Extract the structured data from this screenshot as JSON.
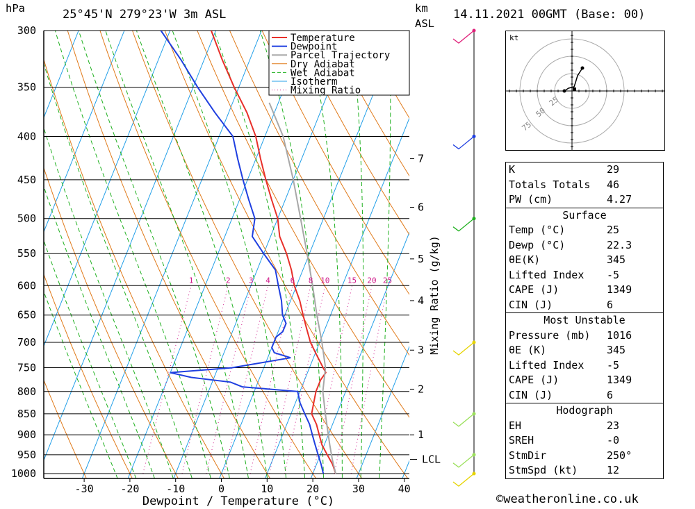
{
  "header": {
    "pressure_unit": "hPa",
    "location": "25°45'N  279°23'W  3m  ASL",
    "height_unit": "km",
    "height_unit_sub": "ASL",
    "datetime": "14.11.2021  00GMT  (Base: 00)"
  },
  "footer": {
    "copyright_symbol": "©",
    "site": "weatheronline.co.uk"
  },
  "colors": {
    "temperature": "#e8302a",
    "dewpoint": "#1f3fe0",
    "parcel": "#a8a8a8",
    "dry_adiabat": "#e07a1a",
    "wet_adiabat": "#1fb01f",
    "isotherm": "#24a0e8",
    "mixing_ratio": "#d01a8a"
  },
  "legend": [
    "Temperature",
    "Dewpoint",
    "Parcel Trajectory",
    "Dry Adiabat",
    "Wet Adiabat",
    "Isotherm",
    "Mixing Ratio"
  ],
  "chart_data": {
    "type": "line",
    "title": "",
    "xlabel": "Dewpoint / Temperature (°C)",
    "ylabel": "hPa",
    "y_scale": "log",
    "xlim": [
      -40,
      40
    ],
    "ylim": [
      1000,
      300
    ],
    "x_ticks": [
      -30,
      -20,
      -10,
      0,
      10,
      20,
      30,
      40
    ],
    "y_ticks": [
      300,
      350,
      400,
      450,
      500,
      550,
      600,
      650,
      700,
      750,
      800,
      850,
      900,
      950,
      1000
    ],
    "right_axis_label": "Mixing Ratio (g/kg)",
    "km_ticks": [
      {
        "km": "1",
        "p": 900
      },
      {
        "km": "2",
        "p": 795
      },
      {
        "km": "3",
        "p": 715
      },
      {
        "km": "4",
        "p": 625
      },
      {
        "km": "5",
        "p": 558
      },
      {
        "km": "6",
        "p": 485
      },
      {
        "km": "7",
        "p": 425
      }
    ],
    "lcl": {
      "label": "LCL",
      "p": 962
    },
    "mixing_ratio_labels": [
      "1",
      "2",
      "3",
      "4",
      "6",
      "8",
      "10",
      "15",
      "20",
      "25"
    ],
    "series": [
      {
        "name": "Temperature",
        "points": [
          [
            1000,
            25
          ],
          [
            975,
            23.5
          ],
          [
            950,
            21.5
          ],
          [
            925,
            19.5
          ],
          [
            900,
            18
          ],
          [
            875,
            16.5
          ],
          [
            850,
            14.5
          ],
          [
            825,
            14
          ],
          [
            800,
            13.5
          ],
          [
            775,
            13.5
          ],
          [
            760,
            14
          ],
          [
            750,
            13
          ],
          [
            725,
            10.5
          ],
          [
            700,
            8
          ],
          [
            675,
            6
          ],
          [
            650,
            4
          ],
          [
            625,
            2
          ],
          [
            600,
            -0.5
          ],
          [
            575,
            -2.5
          ],
          [
            550,
            -5
          ],
          [
            525,
            -8
          ],
          [
            500,
            -10
          ],
          [
            475,
            -13
          ],
          [
            450,
            -16
          ],
          [
            425,
            -19
          ],
          [
            400,
            -22
          ],
          [
            375,
            -26
          ],
          [
            350,
            -31
          ],
          [
            325,
            -36
          ],
          [
            300,
            -41
          ]
        ]
      },
      {
        "name": "Dewpoint",
        "points": [
          [
            1000,
            22.3
          ],
          [
            975,
            21
          ],
          [
            950,
            19.5
          ],
          [
            925,
            18
          ],
          [
            900,
            16.5
          ],
          [
            875,
            15
          ],
          [
            850,
            13
          ],
          [
            825,
            11
          ],
          [
            800,
            9.5
          ],
          [
            790,
            -3
          ],
          [
            780,
            -6
          ],
          [
            770,
            -15
          ],
          [
            760,
            -20
          ],
          [
            750,
            -7
          ],
          [
            730,
            5
          ],
          [
            720,
            1
          ],
          [
            710,
            0
          ],
          [
            690,
            0
          ],
          [
            680,
            1
          ],
          [
            665,
            1
          ],
          [
            650,
            -0.5
          ],
          [
            625,
            -2
          ],
          [
            600,
            -4
          ],
          [
            575,
            -6
          ],
          [
            550,
            -10
          ],
          [
            525,
            -14
          ],
          [
            500,
            -15
          ],
          [
            475,
            -18
          ],
          [
            450,
            -21
          ],
          [
            425,
            -24
          ],
          [
            400,
            -27
          ],
          [
            375,
            -33
          ],
          [
            350,
            -39
          ],
          [
            325,
            -45
          ],
          [
            300,
            -52
          ]
        ]
      },
      {
        "name": "Parcel Trajectory",
        "points": [
          [
            1000,
            25
          ],
          [
            962,
            23
          ],
          [
            925,
            21.2
          ],
          [
            900,
            20
          ],
          [
            850,
            17.5
          ],
          [
            800,
            15
          ],
          [
            750,
            13.5
          ],
          [
            700,
            10.5
          ],
          [
            650,
            7
          ],
          [
            600,
            3.5
          ],
          [
            550,
            -0.5
          ],
          [
            500,
            -5
          ],
          [
            450,
            -10
          ],
          [
            400,
            -16
          ],
          [
            365,
            -22
          ]
        ]
      }
    ],
    "wind_barbs": [
      {
        "p": 1000,
        "color": "#e6d400"
      },
      {
        "p": 950,
        "color": "#9ae05a"
      },
      {
        "p": 850,
        "color": "#9ae05a"
      },
      {
        "p": 700,
        "color": "#e6d400"
      },
      {
        "p": 500,
        "color": "#1fb01f"
      },
      {
        "p": 400,
        "color": "#1f3fe0"
      },
      {
        "p": 300,
        "color": "#e0207a"
      }
    ]
  },
  "hodograph": {
    "unit": "kt",
    "ring_labels": [
      "25",
      "50",
      "75"
    ]
  },
  "stats": {
    "k": {
      "label": "K",
      "value": "29"
    },
    "totals": {
      "label": "Totals Totals",
      "value": "46"
    },
    "pw": {
      "label": "PW (cm)",
      "value": "4.27"
    },
    "surface": {
      "title": "Surface",
      "temp": {
        "label": "Temp (°C)",
        "value": "25"
      },
      "dewp": {
        "label": "Dewp (°C)",
        "value": "22.3"
      },
      "theta": {
        "label": "θE(K)",
        "value": "345"
      },
      "li": {
        "label": "Lifted Index",
        "value": "-5"
      },
      "cape": {
        "label": "CAPE (J)",
        "value": "1349"
      },
      "cin": {
        "label": "CIN (J)",
        "value": "6"
      }
    },
    "mu": {
      "title": "Most Unstable",
      "pressure": {
        "label": "Pressure (mb)",
        "value": "1016"
      },
      "theta": {
        "label": "θE (K)",
        "value": "345"
      },
      "li": {
        "label": "Lifted Index",
        "value": "-5"
      },
      "cape": {
        "label": "CAPE (J)",
        "value": "1349"
      },
      "cin": {
        "label": "CIN (J)",
        "value": "6"
      }
    },
    "hodo": {
      "title": "Hodograph",
      "eh": {
        "label": "EH",
        "value": "23"
      },
      "sreh": {
        "label": "SREH",
        "value": "-0"
      },
      "stmdir": {
        "label": "StmDir",
        "value": "250°"
      },
      "stmspd": {
        "label": "StmSpd (kt)",
        "value": "12"
      }
    }
  }
}
